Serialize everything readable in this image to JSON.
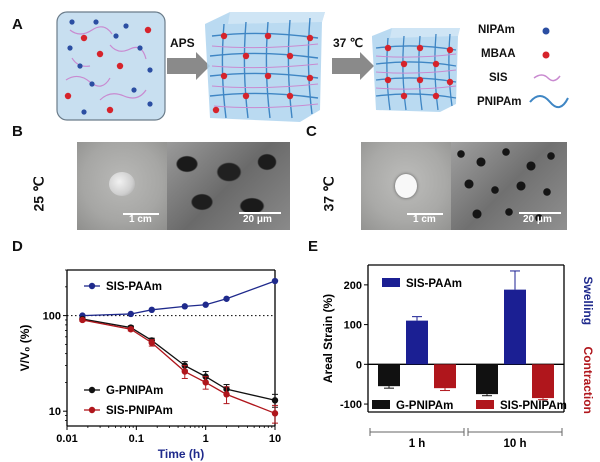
{
  "panels": {
    "a": {
      "letter": "A",
      "arrow1": "APS",
      "arrow2": "37 ℃",
      "legend": [
        {
          "label": "NIPAm",
          "kind": "dot",
          "color": "#2b4ea2"
        },
        {
          "label": "MBAA",
          "kind": "dot",
          "color": "#d6232b"
        },
        {
          "label": "SIS",
          "kind": "curve",
          "color": "#c98ad0"
        },
        {
          "label": "PNIPAm",
          "kind": "curve",
          "color": "#3f86c4"
        }
      ]
    },
    "b": {
      "letter": "B",
      "temp": "25 ℃",
      "scale_photo": "1 cm",
      "scale_sem": "20 μm"
    },
    "c": {
      "letter": "C",
      "temp": "37 ℃",
      "scale_photo": "1 cm",
      "scale_sem": "20 μm"
    },
    "d": {
      "letter": "D"
    },
    "e": {
      "letter": "E"
    }
  },
  "chart_data": [
    {
      "type": "line",
      "panel": "D",
      "ylabel": "V/V₀ (%)",
      "xlabel": "Time (h)",
      "xscale": "log",
      "yscale": "log",
      "xlim": [
        0.01,
        10
      ],
      "ylim": [
        7,
        300
      ],
      "xticks": [
        "0.01",
        "0.1",
        "1",
        "10"
      ],
      "yticks": [
        "10",
        "100"
      ],
      "reference_line": {
        "y": 100,
        "style": "dotted"
      },
      "series": [
        {
          "name": "SIS-PAAm",
          "color": "#1f2a8c",
          "x": [
            0.0167,
            0.0833,
            0.167,
            0.5,
            1,
            2,
            10
          ],
          "y": [
            100,
            104,
            115,
            125,
            130,
            150,
            230
          ],
          "err": [
            0,
            0,
            0,
            0,
            0,
            0,
            0
          ]
        },
        {
          "name": "G-PNIPAm",
          "color": "#111111",
          "x": [
            0.0167,
            0.0833,
            0.167,
            0.5,
            1,
            2,
            10
          ],
          "y": [
            92,
            75,
            55,
            30,
            23,
            17,
            13
          ],
          "err": [
            3,
            3,
            3,
            3,
            3,
            2,
            2
          ]
        },
        {
          "name": "SIS-PNIPAm",
          "color": "#b0161c",
          "x": [
            0.0167,
            0.0833,
            0.167,
            0.5,
            1,
            2,
            10
          ],
          "y": [
            90,
            72,
            52,
            26,
            20,
            15,
            9.5
          ],
          "err": [
            3,
            3,
            4,
            4,
            3,
            3,
            2
          ]
        }
      ]
    },
    {
      "type": "bar",
      "panel": "E",
      "ylabel": "Areal Strain (%)",
      "ylim": [
        -120,
        250
      ],
      "yticks": [
        "-100",
        "0",
        "100",
        "200"
      ],
      "categories": [
        "1 h",
        "10 h"
      ],
      "right_labels": [
        {
          "text": "Swelling",
          "color": "#1f2a8c"
        },
        {
          "text": "Contraction",
          "color": "#b0161c"
        }
      ],
      "series": [
        {
          "name": "G-PNIPAm",
          "color": "#111111",
          "values": [
            -55,
            -75
          ],
          "err": [
            5,
            4
          ]
        },
        {
          "name": "SIS-PAAm",
          "color": "#1b1f93",
          "values": [
            110,
            188
          ],
          "err": [
            10,
            47
          ]
        },
        {
          "name": "SIS-PNIPAm",
          "color": "#b0161c",
          "values": [
            -60,
            -85
          ],
          "err": [
            6,
            4
          ]
        }
      ]
    }
  ]
}
